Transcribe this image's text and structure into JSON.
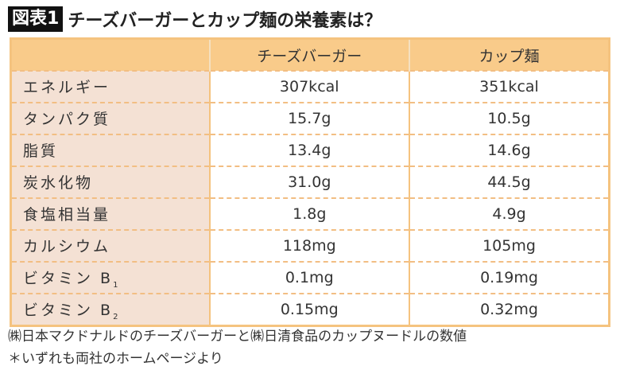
{
  "title": {
    "badge": "図表1",
    "text": "チーズバーガーとカップ麺の栄養素は？"
  },
  "table": {
    "headers": [
      "",
      "チーズバーガー",
      "カップ麺"
    ],
    "rows": [
      {
        "label": "エネルギー",
        "sub": "",
        "cheeseburger": "307kcal",
        "cup_noodle": "351kcal"
      },
      {
        "label": "タンパク質",
        "sub": "",
        "cheeseburger": "15.7g",
        "cup_noodle": "10.5g"
      },
      {
        "label": "脂質",
        "sub": "",
        "cheeseburger": "13.4g",
        "cup_noodle": "14.6g"
      },
      {
        "label": "炭水化物",
        "sub": "",
        "cheeseburger": "31.0g",
        "cup_noodle": "44.5g"
      },
      {
        "label": "食塩相当量",
        "sub": "",
        "cheeseburger": "1.8g",
        "cup_noodle": "4.9g"
      },
      {
        "label": "カルシウム",
        "sub": "",
        "cheeseburger": "118mg",
        "cup_noodle": "105mg"
      },
      {
        "label": "ビタミン B",
        "sub": "1",
        "cheeseburger": "0.1mg",
        "cup_noodle": "0.19mg"
      },
      {
        "label": "ビタミン B",
        "sub": "2",
        "cheeseburger": "0.15mg",
        "cup_noodle": "0.32mg"
      }
    ]
  },
  "footnotes": [
    "㈱日本マクドナルドのチーズバーガーと㈱日清食品のカップヌードルの数値",
    "＊いずれも両社のホームページより"
  ]
}
